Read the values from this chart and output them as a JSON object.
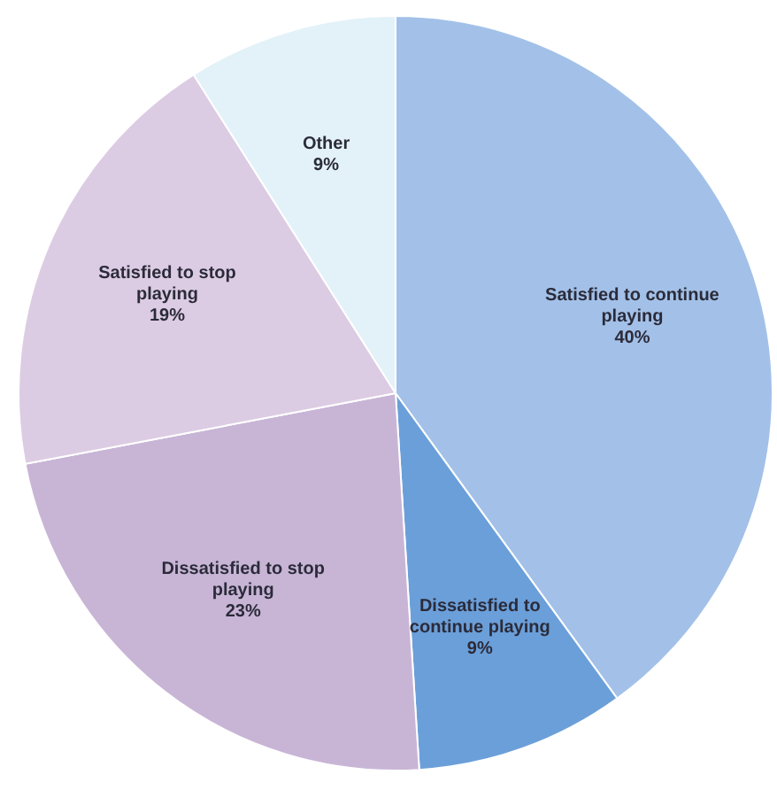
{
  "chart_data": {
    "type": "pie",
    "categories": [
      "Satisfied to continue playing",
      "Dissatisfied to continue playing",
      "Dissatisfied to stop playing",
      "Satisfied to stop playing",
      "Other"
    ],
    "values": [
      40,
      9,
      23,
      19,
      9
    ],
    "colors": [
      "#a3c1e8",
      "#6b9fd9",
      "#c8b5d6",
      "#dccce3",
      "#e3f1f8"
    ],
    "value_labels": [
      "40%",
      "9%",
      "23%",
      "19%",
      "9%"
    ],
    "legend": false
  }
}
